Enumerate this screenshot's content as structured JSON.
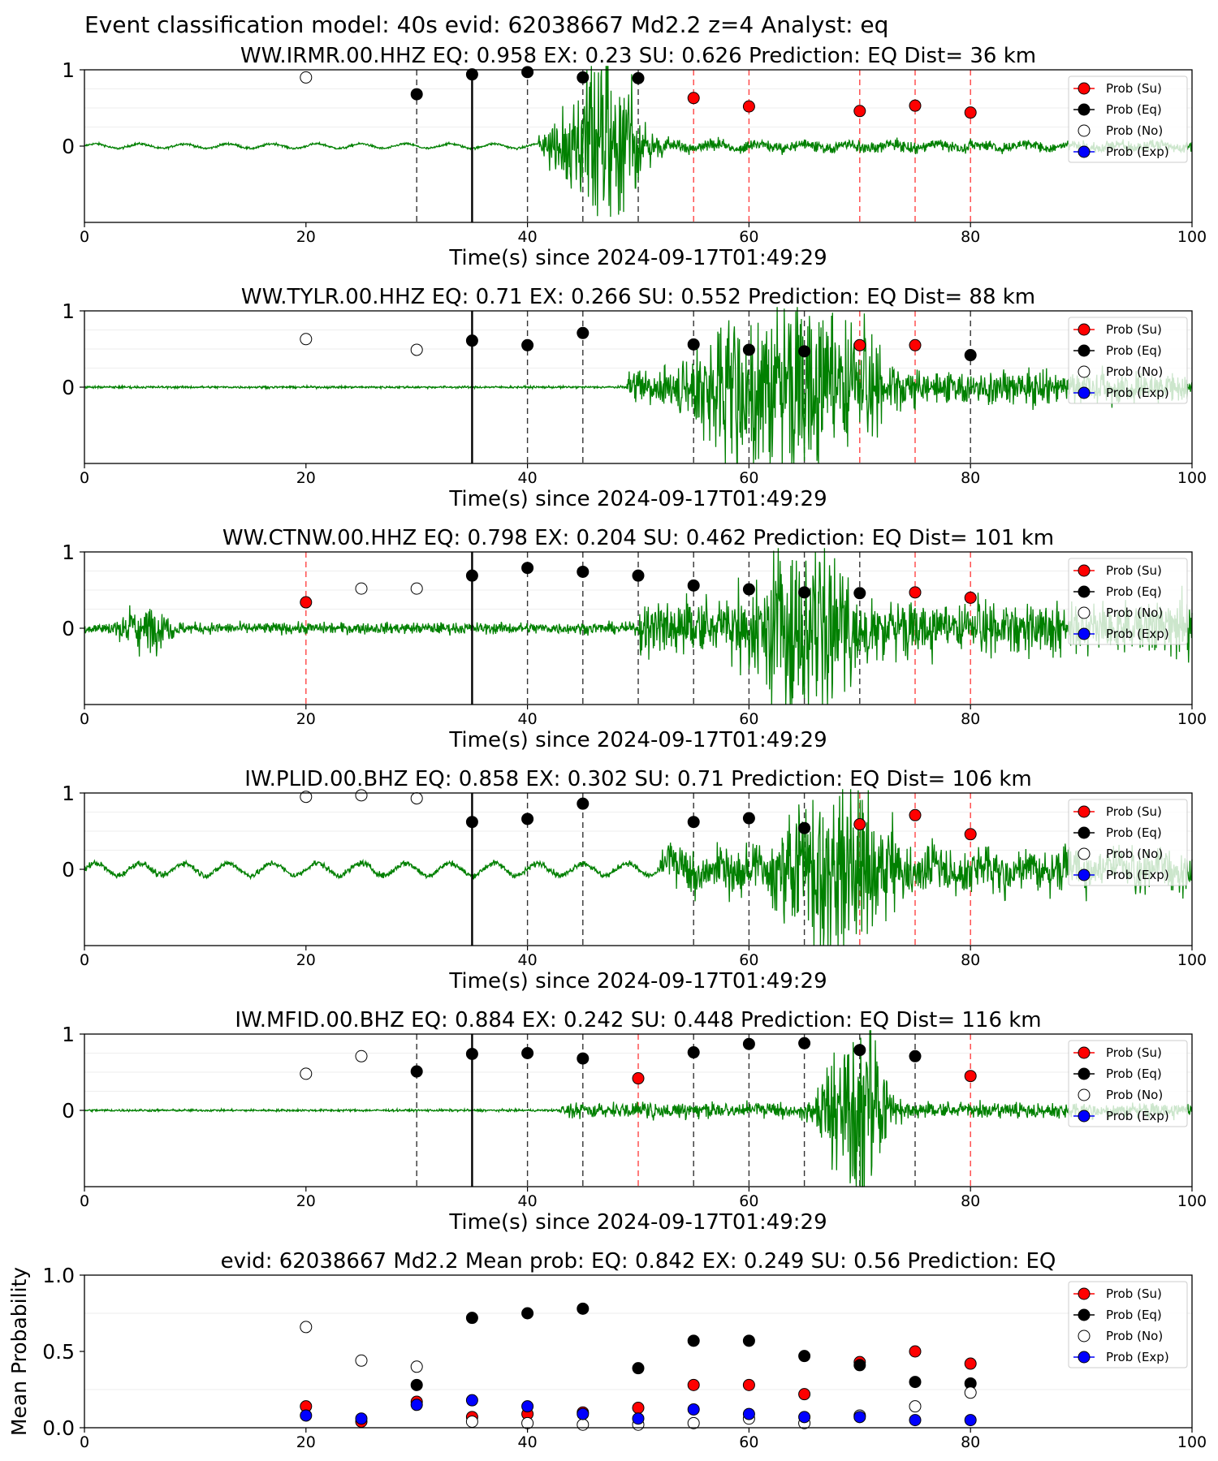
{
  "figure": {
    "suptitle": "Event classification model: 40s evid: 62038667 Md2.2 z=4 Analyst: eq"
  },
  "legend_entries": [
    {
      "label": "Prob (Su)",
      "color": "#ff0000",
      "marker": "filled"
    },
    {
      "label": "Prob (Eq)",
      "color": "#000000",
      "marker": "filled"
    },
    {
      "label": "Prob (No)",
      "color": "#ffffff",
      "marker": "hollow"
    },
    {
      "label": "Prob (Exp)",
      "color": "#0000ff",
      "marker": "filled"
    }
  ],
  "colors": {
    "waveform": "#008000",
    "su": "#ff0000",
    "eq": "#000000",
    "exp": "#0000ff",
    "su_line": "#ff4444",
    "eq_line": "#333333",
    "origin_line": "#000000"
  },
  "chart_data": [
    {
      "type": "scatter",
      "title": "WW.IRMR.00.HHZ   EQ: 0.958  EX: 0.23  SU: 0.626   Prediction: EQ    Dist= 36 km",
      "xlabel": "Time(s) since 2024-09-17T01:49:29",
      "ylabel": "",
      "xlim": [
        0,
        100
      ],
      "ylim": [
        -1,
        1
      ],
      "xticks": [
        "0",
        "20",
        "40",
        "60",
        "80",
        "100"
      ],
      "yticks": [
        "1",
        "0"
      ],
      "origin_time": 35,
      "legend_position": "top-right",
      "waveform": {
        "shape": "single",
        "onset": 41,
        "peak": 46.5,
        "pre_amp": 0.03,
        "noise_amp": 0.05,
        "peak_amp": 1.0,
        "width": 3.5,
        "osc_period": 4
      },
      "points": [
        {
          "x": 20,
          "y": 0.9,
          "class": "No"
        },
        {
          "x": 30,
          "y": 0.68,
          "class": "Eq"
        },
        {
          "x": 35,
          "y": 0.94,
          "class": "Eq"
        },
        {
          "x": 40,
          "y": 0.97,
          "class": "Eq"
        },
        {
          "x": 45,
          "y": 0.9,
          "class": "Eq"
        },
        {
          "x": 50,
          "y": 0.89,
          "class": "Eq"
        },
        {
          "x": 55,
          "y": 0.63,
          "class": "Su"
        },
        {
          "x": 60,
          "y": 0.52,
          "class": "Su"
        },
        {
          "x": 70,
          "y": 0.46,
          "class": "Su"
        },
        {
          "x": 75,
          "y": 0.53,
          "class": "Su"
        },
        {
          "x": 80,
          "y": 0.44,
          "class": "Su"
        }
      ]
    },
    {
      "type": "scatter",
      "title": "WW.TYLR.00.HHZ   EQ: 0.71  EX: 0.266  SU: 0.552   Prediction: EQ    Dist= 88 km",
      "xlabel": "Time(s) since 2024-09-17T01:49:29",
      "ylabel": "",
      "xlim": [
        0,
        100
      ],
      "ylim": [
        -1,
        1
      ],
      "xticks": [
        "0",
        "20",
        "40",
        "60",
        "80",
        "100"
      ],
      "yticks": [
        "1",
        "0"
      ],
      "origin_time": 35,
      "legend_position": "top-right",
      "waveform": {
        "shape": "double",
        "onset": 49,
        "peak": 61,
        "peak2": 66,
        "pre_amp": 0.03,
        "noise_amp": 0.15,
        "peak_amp": 1.0,
        "width": 6,
        "osc_period": 0
      },
      "points": [
        {
          "x": 20,
          "y": 0.63,
          "class": "No"
        },
        {
          "x": 30,
          "y": 0.49,
          "class": "No"
        },
        {
          "x": 35,
          "y": 0.61,
          "class": "Eq"
        },
        {
          "x": 40,
          "y": 0.55,
          "class": "Eq"
        },
        {
          "x": 45,
          "y": 0.71,
          "class": "Eq"
        },
        {
          "x": 55,
          "y": 0.56,
          "class": "Eq"
        },
        {
          "x": 60,
          "y": 0.49,
          "class": "Eq"
        },
        {
          "x": 65,
          "y": 0.47,
          "class": "Eq"
        },
        {
          "x": 70,
          "y": 0.55,
          "class": "Su"
        },
        {
          "x": 75,
          "y": 0.55,
          "class": "Su"
        },
        {
          "x": 80,
          "y": 0.42,
          "class": "Eq"
        }
      ]
    },
    {
      "type": "scatter",
      "title": "WW.CTNW.00.HHZ   EQ: 0.798  EX: 0.204  SU: 0.462   Prediction: EQ    Dist= 101 km",
      "xlabel": "Time(s) since 2024-09-17T01:49:29",
      "ylabel": "",
      "xlim": [
        0,
        100
      ],
      "ylim": [
        -1,
        1
      ],
      "xticks": [
        "0",
        "20",
        "40",
        "60",
        "80",
        "100"
      ],
      "yticks": [
        "1",
        "0"
      ],
      "origin_time": 35,
      "legend_position": "top-right",
      "waveform": {
        "shape": "noisy",
        "onset": 50,
        "peak": 65,
        "pre_amp": 0.15,
        "noise_amp": 0.25,
        "peak_amp": 0.95,
        "width": 5,
        "burst": 4,
        "osc_period": 0
      },
      "points": [
        {
          "x": 20,
          "y": 0.34,
          "class": "Su"
        },
        {
          "x": 25,
          "y": 0.52,
          "class": "No"
        },
        {
          "x": 30,
          "y": 0.52,
          "class": "No"
        },
        {
          "x": 35,
          "y": 0.69,
          "class": "Eq"
        },
        {
          "x": 40,
          "y": 0.79,
          "class": "Eq"
        },
        {
          "x": 45,
          "y": 0.74,
          "class": "Eq"
        },
        {
          "x": 50,
          "y": 0.69,
          "class": "Eq"
        },
        {
          "x": 55,
          "y": 0.56,
          "class": "Eq"
        },
        {
          "x": 60,
          "y": 0.51,
          "class": "Eq"
        },
        {
          "x": 65,
          "y": 0.47,
          "class": "Eq"
        },
        {
          "x": 70,
          "y": 0.46,
          "class": "Eq"
        },
        {
          "x": 75,
          "y": 0.47,
          "class": "Su"
        },
        {
          "x": 80,
          "y": 0.4,
          "class": "Su"
        }
      ]
    },
    {
      "type": "scatter",
      "title": "IW.PLID.00.BHZ   EQ: 0.858  EX: 0.302  SU: 0.71   Prediction: EQ    Dist= 106 km",
      "xlabel": "Time(s) since 2024-09-17T01:49:29",
      "ylabel": "",
      "xlim": [
        0,
        100
      ],
      "ylim": [
        -1,
        1
      ],
      "xticks": [
        "0",
        "20",
        "40",
        "60",
        "80",
        "100"
      ],
      "yticks": [
        "1",
        "0"
      ],
      "origin_time": 35,
      "legend_position": "top-right",
      "waveform": {
        "shape": "single",
        "onset": 52,
        "peak": 68,
        "pre_amp": 0.08,
        "noise_amp": 0.2,
        "peak_amp": 1.0,
        "width": 5,
        "osc_period": 4
      },
      "points": [
        {
          "x": 20,
          "y": 0.95,
          "class": "No"
        },
        {
          "x": 25,
          "y": 0.97,
          "class": "No"
        },
        {
          "x": 30,
          "y": 0.93,
          "class": "No"
        },
        {
          "x": 35,
          "y": 0.62,
          "class": "Eq"
        },
        {
          "x": 40,
          "y": 0.66,
          "class": "Eq"
        },
        {
          "x": 45,
          "y": 0.86,
          "class": "Eq"
        },
        {
          "x": 55,
          "y": 0.62,
          "class": "Eq"
        },
        {
          "x": 60,
          "y": 0.67,
          "class": "Eq"
        },
        {
          "x": 65,
          "y": 0.54,
          "class": "Eq"
        },
        {
          "x": 70,
          "y": 0.59,
          "class": "Su"
        },
        {
          "x": 75,
          "y": 0.71,
          "class": "Su"
        },
        {
          "x": 80,
          "y": 0.46,
          "class": "Su"
        }
      ]
    },
    {
      "type": "scatter",
      "title": "IW.MFID.00.BHZ   EQ: 0.884  EX: 0.242  SU: 0.448   Prediction: EQ    Dist= 116 km",
      "xlabel": "Time(s) since 2024-09-17T01:49:29",
      "ylabel": "",
      "xlim": [
        0,
        100
      ],
      "ylim": [
        -1,
        1
      ],
      "xticks": [
        "0",
        "20",
        "40",
        "60",
        "80",
        "100"
      ],
      "yticks": [
        "1",
        "0"
      ],
      "origin_time": 35,
      "legend_position": "top-right",
      "waveform": {
        "shape": "single",
        "onset": 43,
        "peak": 69.5,
        "pre_amp": 0.03,
        "noise_amp": 0.07,
        "peak_amp": 1.0,
        "width": 2.8,
        "osc_period": 0
      },
      "points": [
        {
          "x": 20,
          "y": 0.48,
          "class": "No"
        },
        {
          "x": 25,
          "y": 0.71,
          "class": "No"
        },
        {
          "x": 30,
          "y": 0.51,
          "class": "Eq"
        },
        {
          "x": 35,
          "y": 0.74,
          "class": "Eq"
        },
        {
          "x": 40,
          "y": 0.75,
          "class": "Eq"
        },
        {
          "x": 45,
          "y": 0.68,
          "class": "Eq"
        },
        {
          "x": 50,
          "y": 0.42,
          "class": "Su"
        },
        {
          "x": 55,
          "y": 0.76,
          "class": "Eq"
        },
        {
          "x": 60,
          "y": 0.87,
          "class": "Eq"
        },
        {
          "x": 65,
          "y": 0.88,
          "class": "Eq"
        },
        {
          "x": 70,
          "y": 0.79,
          "class": "Eq"
        },
        {
          "x": 75,
          "y": 0.71,
          "class": "Eq"
        },
        {
          "x": 80,
          "y": 0.45,
          "class": "Su"
        }
      ]
    },
    {
      "type": "scatter",
      "title": "evid: 62038667  Md2.2   Mean prob:    EQ: 0.842  EX: 0.249  SU: 0.56   Prediction: EQ",
      "xlabel": "",
      "ylabel": "Mean Probability",
      "xlim": [
        0,
        100
      ],
      "ylim": [
        0,
        1
      ],
      "xticks": [
        "0",
        "20",
        "40",
        "60",
        "80",
        "100"
      ],
      "yticks": [
        "1.0",
        "0.5",
        "0.0"
      ],
      "legend_position": "top-right",
      "series": [
        {
          "name": "Prob (Su)",
          "x": [
            20,
            25,
            30,
            35,
            40,
            45,
            50,
            55,
            60,
            65,
            70,
            75,
            80
          ],
          "values": [
            0.14,
            0.04,
            0.17,
            0.07,
            0.09,
            0.1,
            0.13,
            0.28,
            0.28,
            0.22,
            0.43,
            0.5,
            0.42
          ]
        },
        {
          "name": "Prob (Eq)",
          "x": [
            30,
            35,
            40,
            45,
            50,
            55,
            60,
            65,
            70,
            75,
            80
          ],
          "values": [
            0.28,
            0.72,
            0.75,
            0.78,
            0.39,
            0.57,
            0.57,
            0.47,
            0.41,
            0.3,
            0.29
          ]
        },
        {
          "name": "Prob (No)",
          "x": [
            20,
            25,
            30,
            35,
            40,
            45,
            50,
            55,
            60,
            65,
            70,
            75,
            80
          ],
          "values": [
            0.66,
            0.44,
            0.4,
            0.04,
            0.03,
            0.02,
            0.02,
            0.03,
            0.06,
            0.03,
            0.08,
            0.14,
            0.23
          ]
        },
        {
          "name": "Prob (Exp)",
          "x": [
            20,
            25,
            30,
            35,
            40,
            45,
            50,
            55,
            60,
            65,
            70,
            75,
            80
          ],
          "values": [
            0.08,
            0.06,
            0.15,
            0.18,
            0.14,
            0.09,
            0.06,
            0.12,
            0.09,
            0.07,
            0.07,
            0.05,
            0.05
          ]
        }
      ]
    }
  ]
}
